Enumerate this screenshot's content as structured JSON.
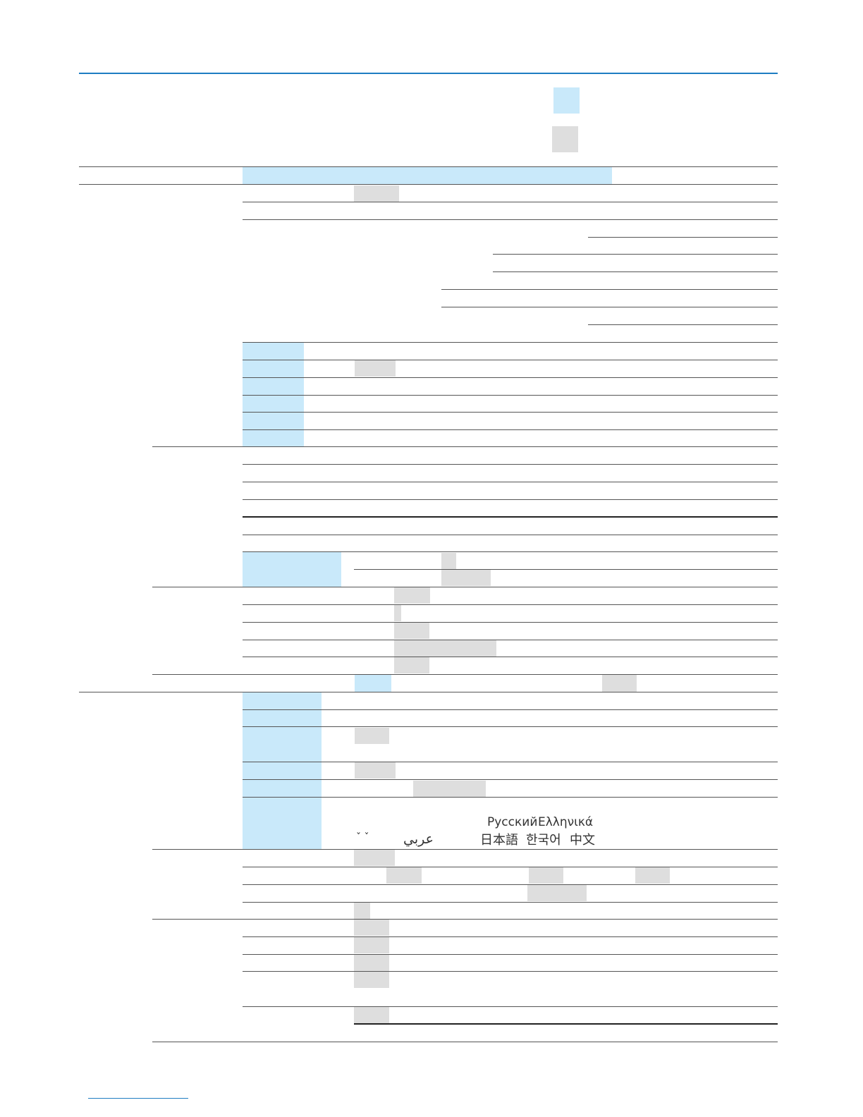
{
  "colors": {
    "accent_blue": "#1e7dc2",
    "highlight_blue": "#c9e9fa",
    "redaction_gray": "#dedede",
    "rule": "#555555"
  },
  "scripts": {
    "russian": "Русский",
    "greek": "Ελληνικά",
    "arabic": "عربي",
    "japanese": "日本語",
    "korean": "한국어",
    "chinese": "中文",
    "diacritics": "ˇ ˇ"
  }
}
